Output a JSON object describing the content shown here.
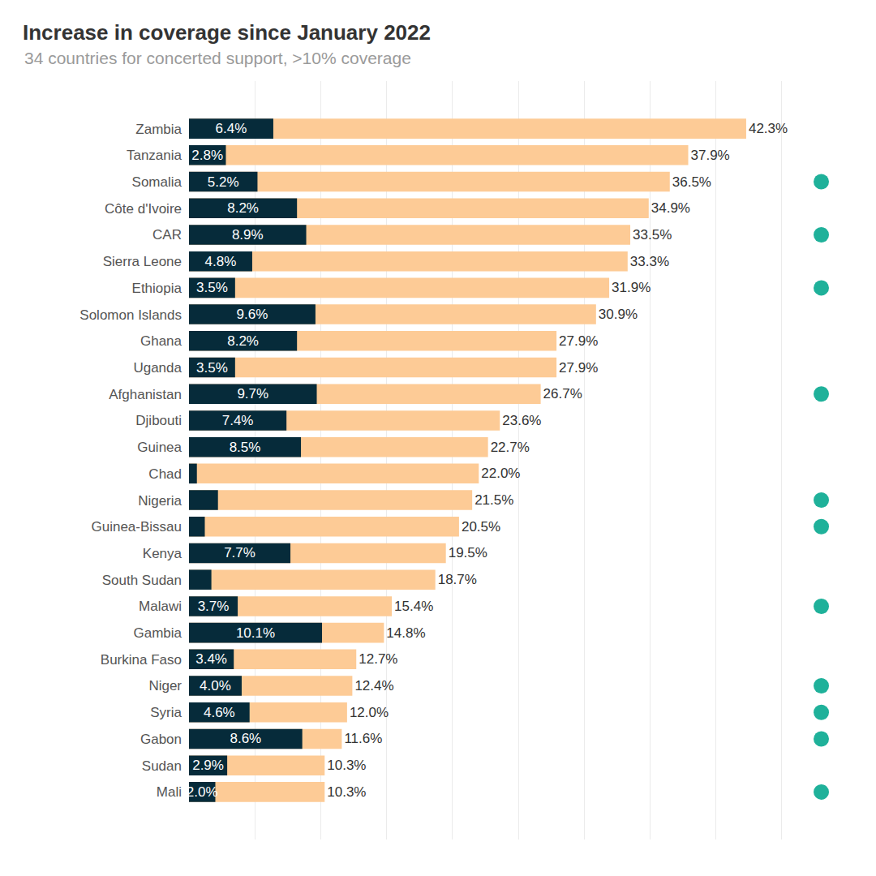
{
  "chart_data": {
    "type": "bar",
    "title": "Increase in coverage since January 2022",
    "subtitle": "34 countries for concerted support, >10% coverage",
    "orientation": "horizontal",
    "stacked": false,
    "data_labels": true,
    "tick_labels": "y",
    "grid": true,
    "categories": [
      "Zambia",
      "Tanzania",
      "Somalia",
      "Côte d'Ivoire",
      "CAR",
      "Sierra Leone",
      "Ethiopia",
      "Solomon Islands",
      "Ghana",
      "Uganda",
      "Afghanistan",
      "Djibouti",
      "Guinea",
      "Chad",
      "Nigeria",
      "Guinea-Bissau",
      "Kenya",
      "South Sudan",
      "Malawi",
      "Gambia",
      "Burkina Faso",
      "Niger",
      "Syria",
      "Gabon",
      "Sudan",
      "Mali"
    ],
    "xlim": [
      0,
      50
    ],
    "xticks": [
      0,
      5,
      10,
      15,
      20,
      25,
      30,
      35,
      40,
      45,
      50
    ],
    "series": [
      {
        "type": "bar",
        "color": "#fdcb96",
        "values": [
          42.3,
          37.9,
          36.5,
          34.9,
          33.5,
          33.3,
          31.9,
          30.9,
          27.9,
          27.9,
          26.7,
          23.6,
          22.7,
          22.0,
          21.5,
          20.5,
          19.5,
          18.7,
          15.4,
          14.8,
          12.7,
          12.4,
          12.0,
          11.6,
          10.3,
          10.3
        ],
        "value_labels": [
          "42.3%",
          "37.9%",
          "36.5%",
          "34.9%",
          "33.5%",
          "33.3%",
          "31.9%",
          "30.9%",
          "27.9%",
          "27.9%",
          "26.7%",
          "23.6%",
          "22.7%",
          "22.0%",
          "21.5%",
          "20.5%",
          "19.5%",
          "18.7%",
          "15.4%",
          "14.8%",
          "12.7%",
          "12.4%",
          "12.0%",
          "11.6%",
          "10.3%",
          "10.3%"
        ]
      },
      {
        "type": "bar",
        "color": "#062b3a",
        "values": [
          6.4,
          2.8,
          5.2,
          8.2,
          8.9,
          4.8,
          3.5,
          9.6,
          8.2,
          3.5,
          9.7,
          7.4,
          8.5,
          0.6,
          2.2,
          1.2,
          7.7,
          1.7,
          3.7,
          10.1,
          3.4,
          4.0,
          4.6,
          8.6,
          2.9,
          2.0
        ],
        "value_labels": [
          "6.4%",
          "2.8%",
          "5.2%",
          "8.2%",
          "8.9%",
          "4.8%",
          "3.5%",
          "9.6%",
          "8.2%",
          "3.5%",
          "9.7%",
          "7.4%",
          "8.5%",
          null,
          null,
          null,
          "7.7%",
          null,
          "3.7%",
          "10.1%",
          "3.4%",
          "4.0%",
          "4.6%",
          "8.6%",
          "2.9%",
          "2.0%"
        ]
      },
      {
        "type": "scatter",
        "marker": "circle",
        "color": "#1fb19a",
        "values": [
          null,
          null,
          48,
          null,
          48,
          null,
          48,
          null,
          null,
          null,
          48,
          null,
          null,
          null,
          48,
          48,
          null,
          null,
          48,
          null,
          null,
          48,
          48,
          48,
          null,
          48
        ]
      }
    ]
  }
}
